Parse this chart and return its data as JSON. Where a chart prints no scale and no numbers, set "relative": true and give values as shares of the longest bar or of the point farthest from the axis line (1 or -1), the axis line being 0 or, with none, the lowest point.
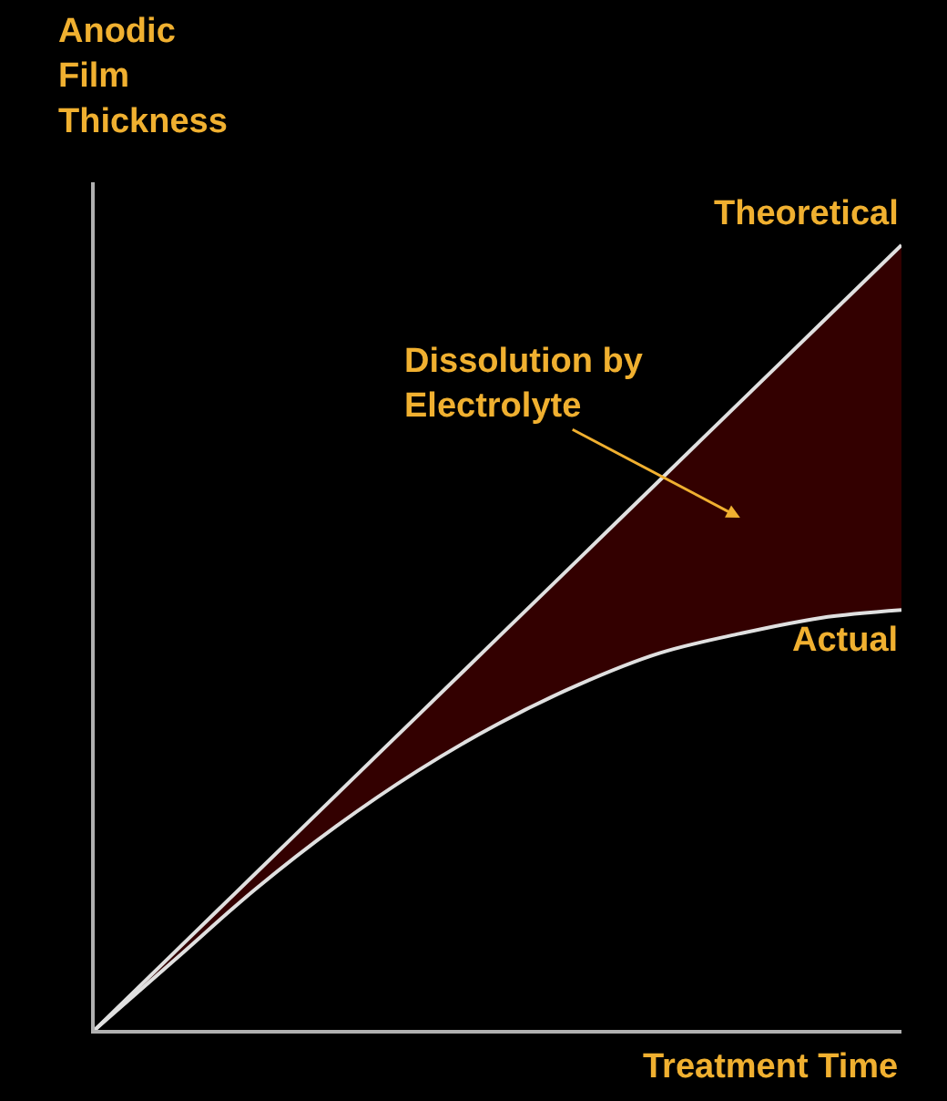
{
  "chart_data": {
    "type": "line",
    "relative": true,
    "ylabel": "Anodic\nFilm\nThickness",
    "xlabel": "Treatment Time",
    "categories": [
      null,
      null,
      null,
      null,
      null,
      null,
      null,
      null,
      null,
      null,
      null
    ],
    "series": [
      {
        "name": "Theoretical",
        "color": "#e0e0e0",
        "values": [
          0,
          0.1,
          0.2,
          0.3,
          0.4,
          0.5,
          0.6,
          0.7,
          0.8,
          0.9,
          1.0
        ],
        "lower": [
          0,
          0.09,
          0.18,
          0.26,
          0.33,
          0.39,
          0.44,
          0.48,
          0.505,
          0.525,
          0.535
        ],
        "upper": [
          0,
          0.1,
          0.2,
          0.3,
          0.4,
          0.5,
          0.6,
          0.7,
          0.8,
          0.9,
          1.0
        ]
      },
      {
        "name": "Actual",
        "color": "#e0e0e0",
        "values": [
          0,
          0.09,
          0.18,
          0.26,
          0.33,
          0.39,
          0.44,
          0.48,
          0.505,
          0.525,
          0.535
        ]
      }
    ],
    "annotations": [
      "Dissolution by\nElectrolyte"
    ],
    "grid": false,
    "legend": false,
    "marker": "none",
    "line_style": "solid"
  }
}
